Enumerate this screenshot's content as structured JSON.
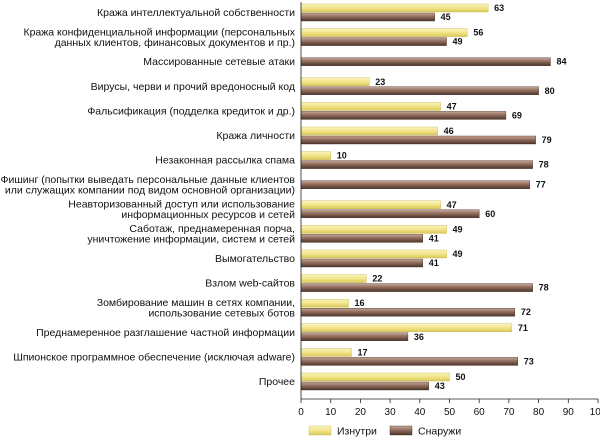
{
  "chart_data": {
    "type": "bar",
    "orientation": "horizontal",
    "categories": [
      "Кража интеллектуальной собственности",
      "Кража конфиденциальной информации (персональных\nданных клиентов, финансовых документов и пр.)",
      "Массированные сетевые атаки",
      "Вирусы, черви и прочий вредоносный код",
      "Фальсификация (подделка кредиток и др.)",
      "Кража личности",
      "Незаконная рассылка спама",
      "Фишинг (попытки выведать персональные данные клиентов\nили служащих компании под видом основной организации)",
      "Неавторизованный доступ или использование\nинформационных ресурсов и сетей",
      "Саботаж, преднамеренная порча,\nуничтожение информации, систем и сетей",
      "Вымогательство",
      "Взлом web-сайтов",
      "Зомбирование машин в сетях компании,\nиспользование сетевых ботов",
      "Преднамеренное разглашение частной информации",
      "Шпионское программное обеспечение (исключая adware)",
      "Прочее"
    ],
    "series": [
      {
        "name": "Изнутри",
        "color": "#f2e48a",
        "values": [
          63,
          56,
          null,
          23,
          47,
          46,
          10,
          null,
          47,
          49,
          49,
          22,
          16,
          71,
          17,
          50
        ]
      },
      {
        "name": "Снаружи",
        "color": "#7a5a4c",
        "values": [
          45,
          49,
          84,
          80,
          69,
          79,
          78,
          77,
          60,
          41,
          41,
          78,
          72,
          36,
          73,
          43
        ]
      }
    ],
    "xlim": [
      0,
      100
    ],
    "xticks": [
      0,
      10,
      20,
      30,
      40,
      50,
      60,
      70,
      80,
      90,
      100
    ],
    "grid": false,
    "legend_position": "bottom"
  }
}
